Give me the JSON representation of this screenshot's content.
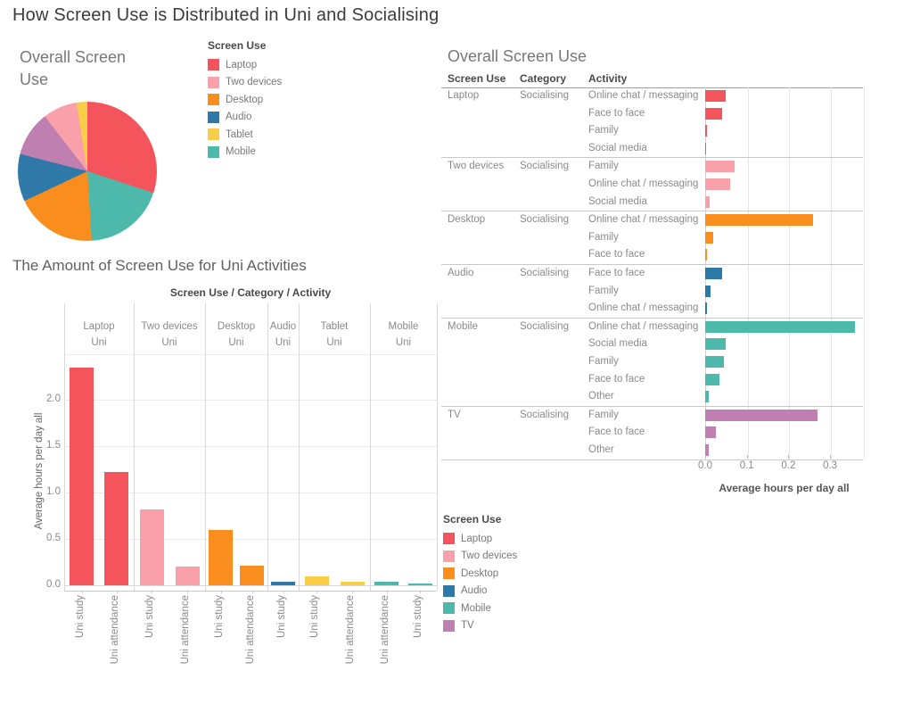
{
  "title": "How Screen Use is Distributed in Uni and Socialising",
  "colors": {
    "Laptop": "#f4555c",
    "Two devices": "#f9a0ab",
    "Desktop": "#f98d1d",
    "Audio": "#2f79a9",
    "Tablet": "#f9ce47",
    "Mobile": "#4cb9ab",
    "TV": "#bf7fb1"
  },
  "legend_top": {
    "title": "Screen Use",
    "items": [
      "Laptop",
      "Two devices",
      "Desktop",
      "Audio",
      "Tablet",
      "Mobile"
    ]
  },
  "legend_bottom": {
    "title": "Screen Use",
    "items": [
      "Laptop",
      "Two devices",
      "Desktop",
      "Audio",
      "Mobile",
      "TV"
    ]
  },
  "chart_data": [
    {
      "type": "pie",
      "title": "Overall Screen Use",
      "slices": [
        {
          "label": "Laptop",
          "percent": 30
        },
        {
          "label": "Mobile",
          "percent": 19
        },
        {
          "label": "Desktop",
          "percent": 19
        },
        {
          "label": "Audio",
          "percent": 11
        },
        {
          "label": "TV",
          "percent": 10.5
        },
        {
          "label": "Two devices",
          "percent": 8
        },
        {
          "label": "Tablet",
          "percent": 2.5
        }
      ]
    },
    {
      "type": "bar",
      "title": "The Amount of Screen Use for Uni Activities",
      "column_header": "Screen Use / Category / Activity",
      "ylabel": "Average hours per day all",
      "yticks": [
        "0.0",
        "0.5",
        "1.0",
        "1.5",
        "2.0"
      ],
      "ytick_values": [
        0,
        0.5,
        1,
        1.5,
        2
      ],
      "ylim": [
        0,
        2.6
      ],
      "groups": [
        {
          "screen_use": "Laptop",
          "category": "Uni",
          "bars": [
            {
              "label": "Uni study",
              "value": 2.35
            },
            {
              "label": "Uni attendance",
              "value": 1.22
            }
          ]
        },
        {
          "screen_use": "Two devices",
          "category": "Uni",
          "bars": [
            {
              "label": "Uni study",
              "value": 0.82
            },
            {
              "label": "Uni attendance",
              "value": 0.2
            }
          ]
        },
        {
          "screen_use": "Desktop",
          "category": "Uni",
          "bars": [
            {
              "label": "Uni study",
              "value": 0.6
            },
            {
              "label": "Uni attendance",
              "value": 0.21
            }
          ]
        },
        {
          "screen_use": "Audio",
          "category": "Uni",
          "bars": [
            {
              "label": "Uni study",
              "value": 0.04
            }
          ]
        },
        {
          "screen_use": "Tablet",
          "category": "Uni",
          "bars": [
            {
              "label": "Uni study",
              "value": 0.1
            },
            {
              "label": "Uni attendance",
              "value": 0.04
            }
          ]
        },
        {
          "screen_use": "Mobile",
          "category": "Uni",
          "bars": [
            {
              "label": "Uni attendance",
              "value": 0.04
            },
            {
              "label": "Uni study",
              "value": 0.02
            }
          ]
        }
      ]
    },
    {
      "type": "bar",
      "orientation": "horizontal",
      "title": "Overall Screen Use",
      "columns": [
        "Screen Use",
        "Category",
        "Activity"
      ],
      "xlabel": "Average hours per day all",
      "xticks": [
        "0.0",
        "0.1",
        "0.2",
        "0.3"
      ],
      "xtick_values": [
        0,
        0.1,
        0.2,
        0.3
      ],
      "xlim": [
        0,
        0.38
      ],
      "groups": [
        {
          "screen_use": "Laptop",
          "category": "Socialising",
          "rows": [
            {
              "activity": "Online chat / messaging",
              "value": 0.05
            },
            {
              "activity": "Face to face",
              "value": 0.04
            },
            {
              "activity": "Family",
              "value": 0.005
            },
            {
              "activity": "Social media",
              "value": 0.002
            }
          ]
        },
        {
          "screen_use": "Two devices",
          "category": "Socialising",
          "rows": [
            {
              "activity": "Family",
              "value": 0.07
            },
            {
              "activity": "Online chat / messaging",
              "value": 0.06
            },
            {
              "activity": "Social media",
              "value": 0.01
            }
          ]
        },
        {
          "screen_use": "Desktop",
          "category": "Socialising",
          "rows": [
            {
              "activity": "Online chat / messaging",
              "value": 0.26
            },
            {
              "activity": "Family",
              "value": 0.02
            },
            {
              "activity": "Face to face",
              "value": 0.005
            }
          ]
        },
        {
          "screen_use": "Audio",
          "category": "Socialising",
          "rows": [
            {
              "activity": "Face to face",
              "value": 0.04
            },
            {
              "activity": "Family",
              "value": 0.012
            },
            {
              "activity": "Online chat / messaging",
              "value": 0.005
            }
          ]
        },
        {
          "screen_use": "Mobile",
          "category": "Socialising",
          "rows": [
            {
              "activity": "Online chat / messaging",
              "value": 0.36
            },
            {
              "activity": "Social media",
              "value": 0.05
            },
            {
              "activity": "Family",
              "value": 0.045
            },
            {
              "activity": "Face to face",
              "value": 0.035
            },
            {
              "activity": "Other",
              "value": 0.008
            }
          ]
        },
        {
          "screen_use": "TV",
          "category": "Socialising",
          "rows": [
            {
              "activity": "Family",
              "value": 0.27
            },
            {
              "activity": "Face to face",
              "value": 0.025
            },
            {
              "activity": "Other",
              "value": 0.008
            }
          ]
        }
      ]
    }
  ]
}
